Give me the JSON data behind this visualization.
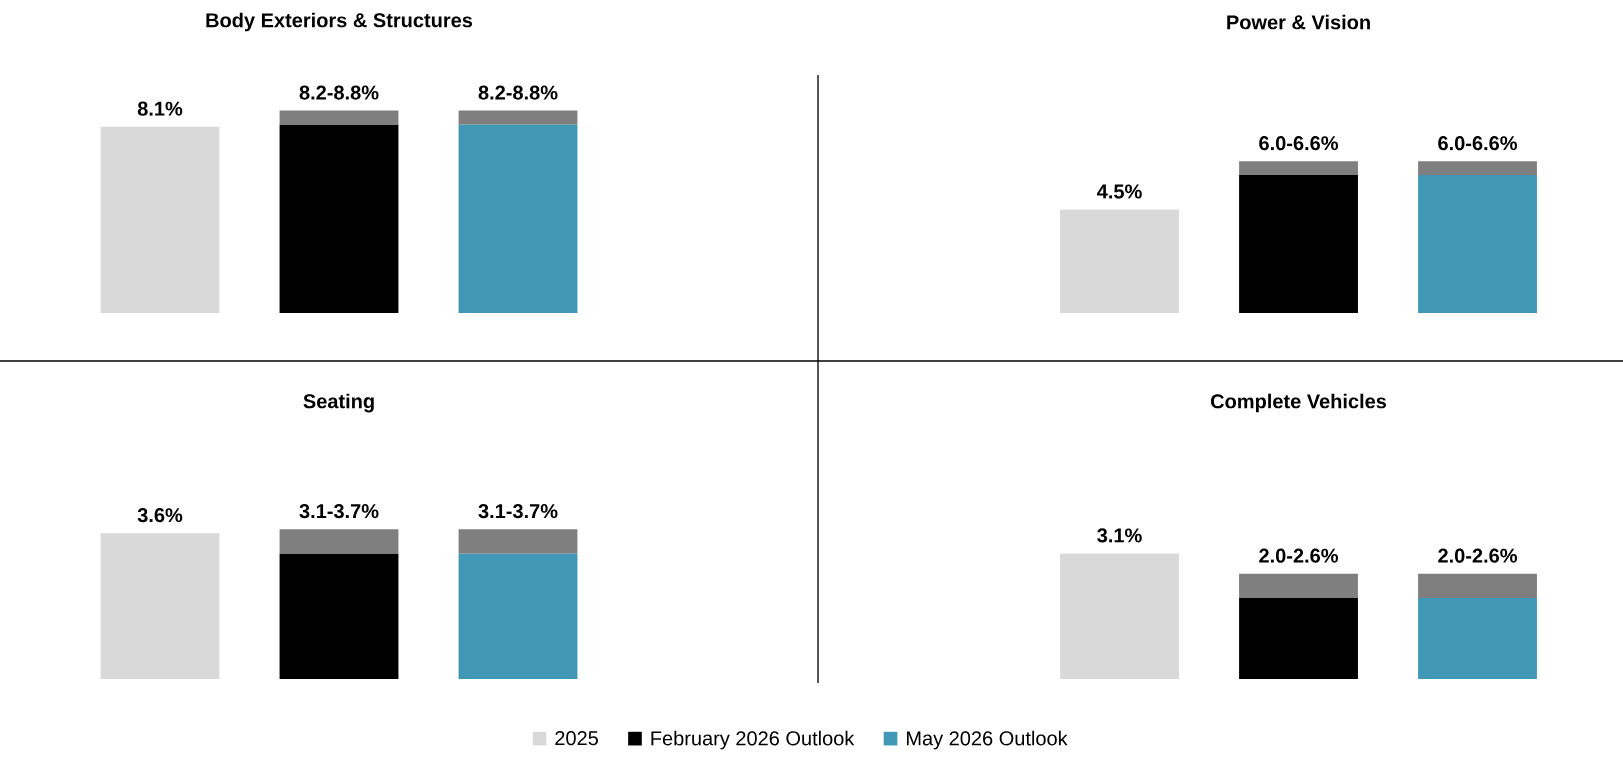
{
  "chart_data": [
    {
      "type": "bar",
      "title": "Body Exteriors & Structures",
      "categories": [
        null,
        null,
        null
      ],
      "stacked": true,
      "totals": [
        null,
        "8.2-8.8%",
        "8.2-8.8%"
      ],
      "series": [
        {
          "color": "#d9d9d9",
          "values": [
            8.1,
            null,
            null
          ],
          "value_labels": [
            "8.1%",
            null,
            null
          ]
        },
        {
          "color": "#000000",
          "values": [
            null,
            8.2,
            null
          ]
        },
        {
          "color": "#4198b6",
          "values": [
            null,
            null,
            8.2
          ]
        },
        {
          "color": "#7f7f7f",
          "values": [
            null,
            0.6,
            0.6
          ]
        }
      ]
    },
    {
      "type": "bar",
      "title": "Power & Vision",
      "categories": [
        null,
        null,
        null
      ],
      "stacked": true,
      "totals": [
        null,
        "6.0-6.6%",
        "6.0-6.6%"
      ],
      "series": [
        {
          "color": "#d9d9d9",
          "values": [
            4.5,
            null,
            null
          ],
          "value_labels": [
            "4.5%",
            null,
            null
          ]
        },
        {
          "color": "#000000",
          "values": [
            null,
            6.0,
            null
          ]
        },
        {
          "color": "#4198b6",
          "values": [
            null,
            null,
            6.0
          ]
        },
        {
          "color": "#7f7f7f",
          "values": [
            null,
            0.6,
            0.6
          ]
        }
      ]
    },
    {
      "type": "bar",
      "title": "Seating",
      "categories": [
        null,
        null,
        null
      ],
      "stacked": true,
      "totals": [
        null,
        "3.1-3.7%",
        "3.1-3.7%"
      ],
      "series": [
        {
          "color": "#d9d9d9",
          "values": [
            3.6,
            null,
            null
          ],
          "value_labels": [
            "3.6%",
            null,
            null
          ]
        },
        {
          "color": "#000000",
          "values": [
            null,
            3.1,
            null
          ]
        },
        {
          "color": "#4198b6",
          "values": [
            null,
            null,
            3.1
          ]
        },
        {
          "color": "#7f7f7f",
          "values": [
            null,
            0.6,
            0.6
          ]
        }
      ]
    },
    {
      "type": "bar",
      "title": "Complete Vehicles",
      "categories": [
        null,
        null,
        null
      ],
      "stacked": true,
      "legend": "bottom",
      "totals": [
        null,
        "2.0-2.6%",
        "2.0-2.6%"
      ],
      "series": [
        {
          "name": "2025",
          "color": "#d9d9d9",
          "values": [
            3.1,
            null,
            null
          ],
          "value_labels": [
            "3.1%",
            null,
            null
          ]
        },
        {
          "name": "February 2026 Outlook",
          "color": "#000000",
          "values": [
            null,
            2.0,
            null
          ]
        },
        {
          "name": "May 2026 Outlook",
          "color": "#4198b6",
          "values": [
            null,
            null,
            2.0
          ]
        },
        {
          "color": "#7f7f7f",
          "values": [
            null,
            0.6,
            0.6
          ]
        }
      ]
    }
  ]
}
